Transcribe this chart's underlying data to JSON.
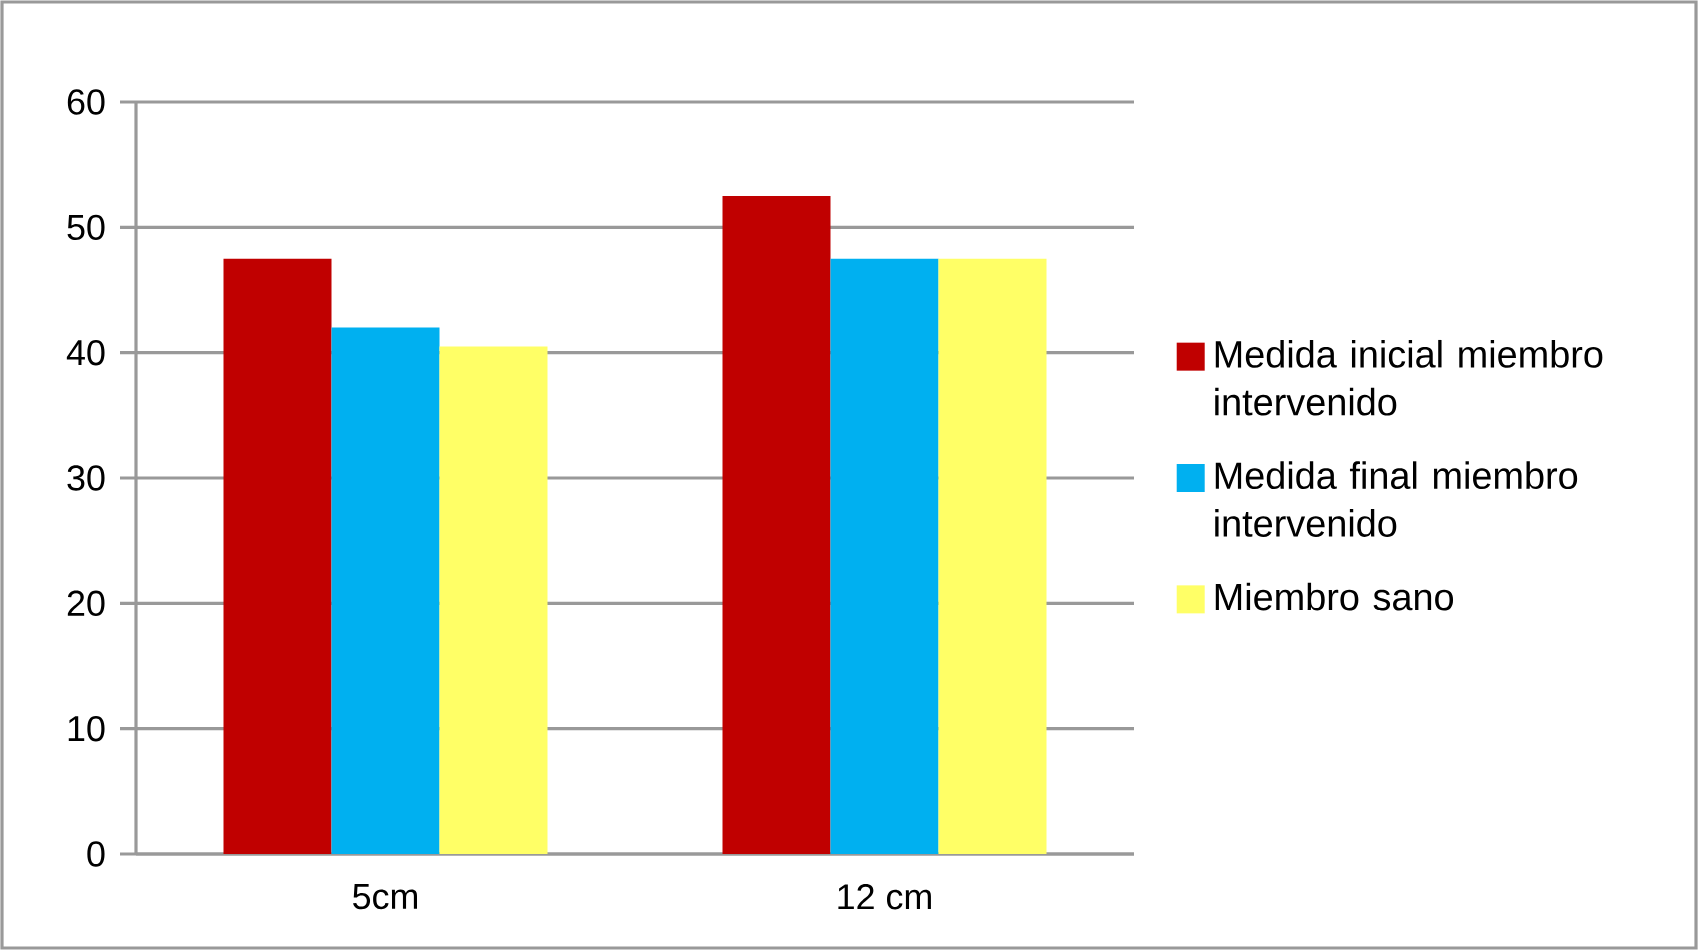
{
  "chart_data": {
    "type": "bar",
    "categories": [
      "5cm",
      "12 cm"
    ],
    "series": [
      {
        "name": "Medida inicial miembro intervenido",
        "color": "#c00000",
        "values": [
          47.5,
          52.5
        ]
      },
      {
        "name": "Medida final miembro intervenido",
        "color": "#00b0f0",
        "values": [
          42,
          47.5
        ]
      },
      {
        "name": "Miembro sano",
        "color": "#ffff66",
        "values": [
          40.5,
          47.5
        ]
      }
    ],
    "ylim": [
      0,
      60
    ],
    "yticks": [
      0,
      10,
      20,
      30,
      40,
      50,
      60
    ],
    "grid": "y",
    "legend": "right"
  }
}
